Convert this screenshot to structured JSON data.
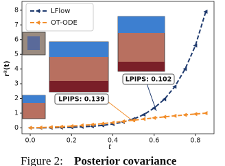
{
  "chart_data": {
    "type": "line",
    "x": [
      0,
      0.05,
      0.1,
      0.15,
      0.2,
      0.25,
      0.3,
      0.35,
      0.4,
      0.45,
      0.5,
      0.55,
      0.6,
      0.65,
      0.7,
      0.75,
      0.8,
      0.85
    ],
    "series": [
      {
        "name": "LFlow",
        "color": "#1f3a6e",
        "dash": "6,3",
        "values": [
          0,
          0,
          0.01,
          0.02,
          0.04,
          0.07,
          0.11,
          0.17,
          0.26,
          0.4,
          0.6,
          0.9,
          1.35,
          1.95,
          2.8,
          4.0,
          5.6,
          7.9
        ]
      },
      {
        "name": "OT-ODE",
        "color": "#f28e2b",
        "dash": "6,3",
        "values": [
          0,
          0.02,
          0.05,
          0.08,
          0.12,
          0.17,
          0.22,
          0.29,
          0.36,
          0.44,
          0.52,
          0.6,
          0.68,
          0.75,
          0.82,
          0.88,
          0.94,
          1.0
        ]
      }
    ],
    "xlabel": "t",
    "ylabel": "r²(t)",
    "xlim": [
      -0.04,
      0.89
    ],
    "xticks": [
      {
        "value": 0,
        "label": "0.0"
      },
      0.2,
      0.4,
      0.6,
      0.8
    ],
    "ylim": [
      -0.4,
      8.6
    ],
    "yticks": [
      0,
      1,
      2,
      3,
      4,
      5,
      6,
      7,
      8
    ],
    "annotations": [
      "LPIPS: 0.102",
      "LPIPS: 0.139"
    ],
    "caption": {
      "prefix": "Figure 2:",
      "bold": "Posterior covariance"
    }
  }
}
